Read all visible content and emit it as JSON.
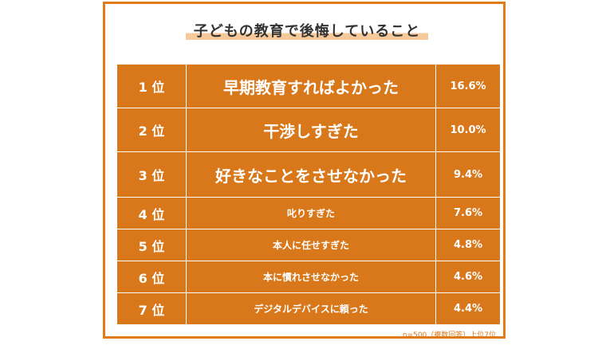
{
  "title": "子どもの教育で後悔していること",
  "note": "n=500（複数回答）上位7位",
  "colors": {
    "accent": "#d9781a",
    "border": "#e07b17",
    "highlight": "#f5c99a"
  },
  "chart_data": {
    "type": "table",
    "rows": [
      {
        "rank": "1 位",
        "label": "早期教育すればよかった",
        "value": "16.6%"
      },
      {
        "rank": "2 位",
        "label": "干渉しすぎた",
        "value": "10.0%"
      },
      {
        "rank": "3 位",
        "label": "好きなことをさせなかった",
        "value": "9.4%"
      },
      {
        "rank": "4 位",
        "label": "叱りすぎた",
        "value": "7.6%"
      },
      {
        "rank": "5 位",
        "label": "本人に任せすぎた",
        "value": "4.8%"
      },
      {
        "rank": "6 位",
        "label": "本に慣れさせなかった",
        "value": "4.6%"
      },
      {
        "rank": "7 位",
        "label": "デジタルデバイスに頼った",
        "value": "4.4%"
      }
    ]
  }
}
